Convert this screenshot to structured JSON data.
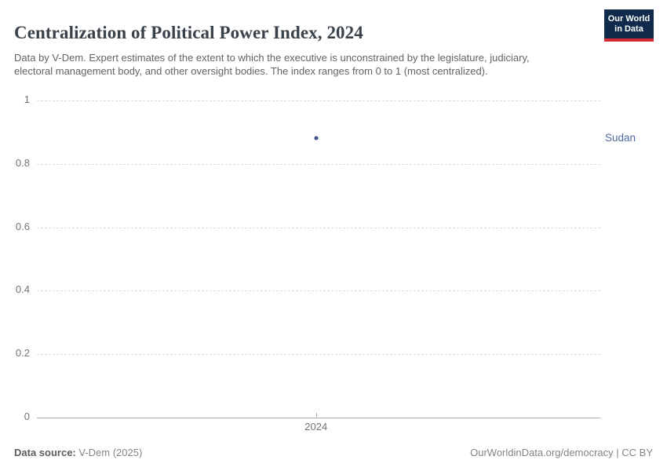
{
  "header": {
    "title": "Centralization of Political Power Index, 2024",
    "subtitle": "Data by V-Dem. Expert estimates of the extent to which the executive is unconstrained by the legislature, judiciary, electoral management body, and other oversight bodies. The index ranges from 0 to 1 (most centralized)."
  },
  "logo": {
    "line1": "Our World",
    "line2": "in Data",
    "bg_color": "#102a4c",
    "stripe_color": "#d12d33"
  },
  "chart_data": {
    "type": "scatter",
    "title": "Centralization of Political Power Index, 2024",
    "x": [
      2024
    ],
    "xtick_labels": [
      "2024"
    ],
    "series": [
      {
        "name": "Sudan",
        "values": [
          0.88
        ]
      }
    ],
    "ylim": [
      0,
      1
    ],
    "yticks": [
      0,
      0.2,
      0.4,
      0.6,
      0.8,
      1
    ],
    "grid": "horizontal-dashed",
    "legend_position": "right-of-plot",
    "point_color": "#3d518e",
    "entity_label_color": "#4c6a9c"
  },
  "footer": {
    "source_label": "Data source:",
    "source_value": " V-Dem (2025)",
    "credit": "OurWorldinData.org/democracy | CC BY"
  }
}
